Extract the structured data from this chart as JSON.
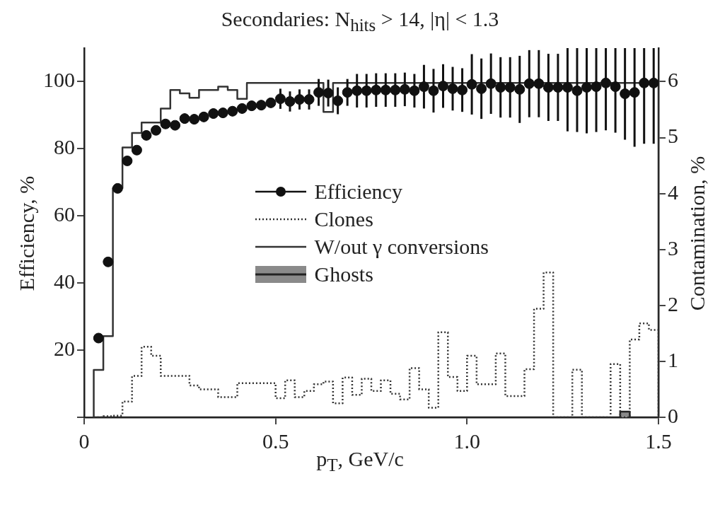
{
  "chart_data": {
    "type": "scatter",
    "title": "Secondaries: N$_{hits}$ > 14, |η| < 1.3",
    "xlabel": "p$_{T}$, GeV/c",
    "ylabel": "Efficiency, %",
    "y2label": "Contamination, %",
    "xlim": [
      0,
      1.5
    ],
    "xticks": [
      0,
      0.5,
      {
        "value": 1,
        "label": "1.0"
      },
      1.5
    ],
    "ylim": [
      0,
      110
    ],
    "yticks": [
      {
        "value": 0,
        "label": null
      },
      20,
      40,
      60,
      80,
      100
    ],
    "y2lim": [
      0,
      6.6
    ],
    "y2ticks": [
      0,
      1,
      2,
      3,
      4,
      5,
      6
    ],
    "grid": false,
    "legend": "center",
    "bins": [
      0.025,
      0.05,
      0.075,
      0.1,
      0.125,
      0.15,
      0.175,
      0.2,
      0.225,
      0.25,
      0.275,
      0.3,
      0.325,
      0.35,
      0.375,
      0.4,
      0.425,
      0.45,
      0.475,
      0.5,
      0.525,
      0.55,
      0.575,
      0.6,
      0.625,
      0.65,
      0.675,
      0.7,
      0.725,
      0.75,
      0.775,
      0.8,
      0.825,
      0.85,
      0.875,
      0.9,
      0.925,
      0.95,
      0.975,
      1.0,
      1.025,
      1.05,
      1.075,
      1.1,
      1.125,
      1.15,
      1.175,
      1.2,
      1.225,
      1.25,
      1.275,
      1.3,
      1.325,
      1.35,
      1.375,
      1.4,
      1.425,
      1.45,
      1.475,
      1.5
    ],
    "series": [
      {
        "name": "Efficiency",
        "marker": "circle",
        "color": "#111111",
        "x": [
          0.0375,
          0.0625,
          0.0875,
          0.1125,
          0.1375,
          0.1625,
          0.1875,
          0.2125,
          0.2375,
          0.2625,
          0.2875,
          0.3125,
          0.3375,
          0.3625,
          0.3875,
          0.4125,
          0.4375,
          0.4625,
          0.4875,
          0.5125,
          0.5375,
          0.5625,
          0.5875,
          0.6125,
          0.6375,
          0.6625,
          0.6875,
          0.7125,
          0.7375,
          0.7625,
          0.7875,
          0.8125,
          0.8375,
          0.8625,
          0.8875,
          0.9125,
          0.9375,
          0.9625,
          0.9875,
          1.0125,
          1.0375,
          1.0625,
          1.0875,
          1.1125,
          1.1375,
          1.1625,
          1.1875,
          1.2125,
          1.2375,
          1.2625,
          1.2875,
          1.3125,
          1.3375,
          1.3625,
          1.3875,
          1.4125,
          1.4375,
          1.4625,
          1.4875
        ],
        "values": [
          23.6,
          46.3,
          68.2,
          76.4,
          79.6,
          84,
          85.5,
          87.4,
          87,
          89,
          88.8,
          89.5,
          90.5,
          90.7,
          91.2,
          92,
          92.8,
          93,
          93.7,
          94.9,
          94.1,
          94.7,
          94.7,
          96.8,
          96.6,
          94.3,
          96.8,
          97.3,
          97.3,
          97.5,
          97.5,
          97.5,
          97.7,
          97.3,
          98.5,
          97.3,
          98.7,
          97.9,
          97.5,
          99.2,
          97.9,
          99.4,
          98.3,
          98.3,
          97.7,
          99.4,
          99.4,
          98.3,
          98.3,
          98.3,
          97.3,
          98.3,
          98.5,
          99.6,
          98.5,
          96.4,
          96.8,
          99.6,
          99.6
        ],
        "errors": [
          null,
          null,
          null,
          null,
          null,
          null,
          null,
          null,
          null,
          1.5,
          1.5,
          1.5,
          1.5,
          1.5,
          1.5,
          1.5,
          1.5,
          1.5,
          1.5,
          3,
          3,
          3,
          3,
          4,
          4,
          4,
          4,
          5,
          5,
          5,
          5,
          5,
          5,
          5,
          6.5,
          6.5,
          6.5,
          6.5,
          6.5,
          9,
          9,
          9,
          9,
          9,
          10,
          10,
          10,
          10,
          10,
          [
            85.2,
            110
          ],
          [
            85,
            110
          ],
          [
            84.6,
            110
          ],
          [
            85,
            110
          ],
          [
            85.5,
            110
          ],
          [
            84.8,
            110
          ],
          [
            82.7,
            110
          ],
          [
            80.6,
            110
          ],
          [
            81.5,
            110
          ],
          [
            81.5,
            110
          ]
        ]
      },
      {
        "name": "Clones",
        "type": "histogram",
        "axis": "y2",
        "color": "#333333",
        "line_style": "dotted",
        "values": [
          0,
          0.02,
          0.03,
          0.28,
          0.74,
          1.26,
          1.1,
          0.74,
          0.74,
          0.74,
          0.57,
          0.5,
          0.5,
          0.36,
          0.36,
          0.61,
          0.61,
          0.61,
          0.61,
          0.34,
          0.66,
          0.36,
          0.47,
          0.59,
          0.64,
          0.25,
          0.71,
          0.4,
          0.69,
          0.47,
          0.66,
          0.42,
          0.32,
          0.88,
          0.5,
          0.17,
          1.52,
          0.72,
          0.47,
          1.1,
          0.59,
          0.59,
          1.14,
          0.38,
          0.38,
          0.86,
          1.94,
          2.59,
          0,
          0,
          0.85,
          0,
          0,
          0,
          0.95,
          0,
          1.39,
          1.68,
          1.56
        ]
      },
      {
        "name": "W/out γ conversions",
        "type": "histogram",
        "color": "#333333",
        "line_style": "solid",
        "values": [
          14.1,
          24.2,
          68.3,
          80.4,
          84.7,
          87.8,
          87.8,
          92,
          97.5,
          96.5,
          95.2,
          97.5,
          97.5,
          98.5,
          97.5,
          94.9,
          99.6,
          99.6,
          99.6,
          99.6,
          99.6,
          99.6,
          99.6,
          99.6,
          91,
          99.6,
          99.6,
          99.6,
          99.6,
          99.6,
          99.6,
          99.6,
          99.6,
          99.6,
          99.6,
          99.6,
          99.6,
          99.6,
          99.6,
          99.6,
          99.6,
          99.6,
          99.6,
          99.6,
          99.6,
          99.6,
          99.6,
          99.6,
          99.6,
          99.6,
          99.6,
          99.6,
          99.6,
          99.6,
          99.6,
          99.6,
          99.6,
          99.6,
          99.6
        ]
      },
      {
        "name": "Ghosts",
        "type": "area",
        "axis": "y2",
        "color": "#8a8a8a",
        "x": [
          0.025,
          1.4,
          1.4,
          1.425,
          1.425,
          1.5
        ],
        "values": [
          0,
          0,
          0.1,
          0.1,
          0,
          0
        ]
      }
    ]
  }
}
